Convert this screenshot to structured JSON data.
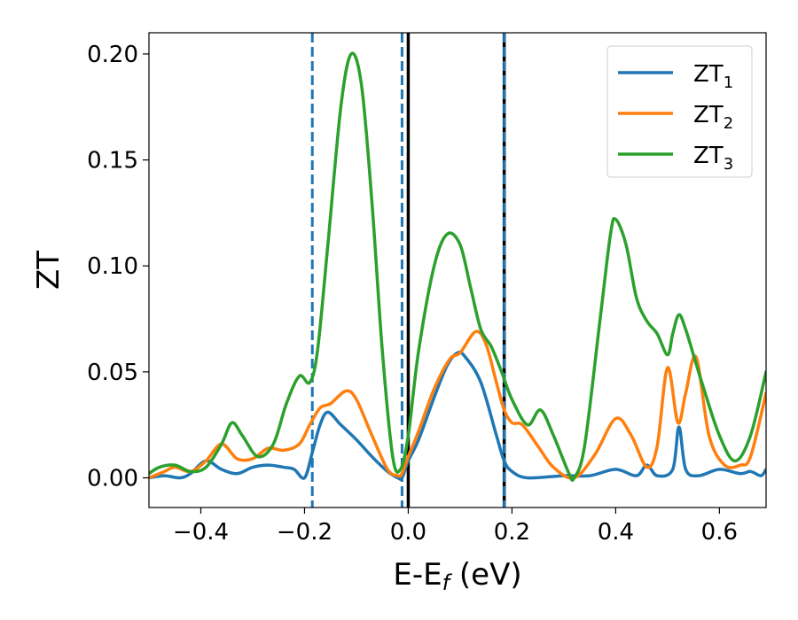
{
  "chart_data": {
    "type": "line",
    "xlabel_main": "E-E",
    "xlabel_sub": "f",
    "xlabel_unit": " (eV)",
    "ylabel": "ZT",
    "xlim": [
      -0.5,
      0.69
    ],
    "ylim": [
      -0.014,
      0.21
    ],
    "x_ticks": [
      -0.4,
      -0.2,
      0.0,
      0.2,
      0.4,
      0.6
    ],
    "x_tick_labels": [
      "−0.4",
      "−0.2",
      "0.0",
      "0.2",
      "0.4",
      "0.6"
    ],
    "y_ticks": [
      0.0,
      0.05,
      0.1,
      0.15,
      0.2
    ],
    "y_tick_labels": [
      "0.00",
      "0.05",
      "0.10",
      "0.15",
      "0.20"
    ],
    "grid": false,
    "legend_position": "top-right",
    "reference_lines": [
      {
        "x": -0.185,
        "style": "dashed",
        "color": "#1f77b4"
      },
      {
        "x": -0.012,
        "style": "dashed",
        "color": "#1f77b4"
      },
      {
        "x": 0.0,
        "style": "solid",
        "color": "#000000"
      },
      {
        "x": 0.185,
        "style": "solid",
        "color": "#000000"
      },
      {
        "x": 0.185,
        "style": "dashed",
        "color": "#1f77b4"
      }
    ],
    "series": [
      {
        "name": "ZT",
        "sub": "1",
        "color": "#1f77b4",
        "points": [
          [
            -0.5,
            0.0
          ],
          [
            -0.47,
            0.001
          ],
          [
            -0.44,
            0.0
          ],
          [
            -0.42,
            0.002
          ],
          [
            -0.39,
            0.008
          ],
          [
            -0.36,
            0.004
          ],
          [
            -0.33,
            0.002
          ],
          [
            -0.3,
            0.005
          ],
          [
            -0.27,
            0.006
          ],
          [
            -0.24,
            0.005
          ],
          [
            -0.22,
            0.004
          ],
          [
            -0.2,
            0.0
          ],
          [
            -0.185,
            0.012
          ],
          [
            -0.17,
            0.025
          ],
          [
            -0.155,
            0.031
          ],
          [
            -0.13,
            0.025
          ],
          [
            -0.1,
            0.018
          ],
          [
            -0.07,
            0.01
          ],
          [
            -0.04,
            0.003
          ],
          [
            -0.02,
            0.0
          ],
          [
            -0.012,
            0.0
          ],
          [
            0.0,
            0.008
          ],
          [
            0.02,
            0.018
          ],
          [
            0.05,
            0.038
          ],
          [
            0.075,
            0.053
          ],
          [
            0.095,
            0.059
          ],
          [
            0.11,
            0.057
          ],
          [
            0.14,
            0.045
          ],
          [
            0.17,
            0.02
          ],
          [
            0.185,
            0.008
          ],
          [
            0.2,
            0.003
          ],
          [
            0.23,
            0.0
          ],
          [
            0.3,
            0.001
          ],
          [
            0.35,
            0.001
          ],
          [
            0.4,
            0.004
          ],
          [
            0.44,
            0.001
          ],
          [
            0.46,
            0.006
          ],
          [
            0.48,
            0.001
          ],
          [
            0.51,
            0.004
          ],
          [
            0.522,
            0.024
          ],
          [
            0.535,
            0.004
          ],
          [
            0.56,
            0.001
          ],
          [
            0.6,
            0.004
          ],
          [
            0.64,
            0.002
          ],
          [
            0.66,
            0.003
          ],
          [
            0.68,
            0.001
          ],
          [
            0.69,
            0.004
          ]
        ]
      },
      {
        "name": "ZT",
        "sub": "2",
        "color": "#ff7f0e",
        "points": [
          [
            -0.5,
            0.0
          ],
          [
            -0.47,
            0.003
          ],
          [
            -0.45,
            0.005
          ],
          [
            -0.42,
            0.003
          ],
          [
            -0.39,
            0.008
          ],
          [
            -0.36,
            0.016
          ],
          [
            -0.33,
            0.009
          ],
          [
            -0.3,
            0.009
          ],
          [
            -0.27,
            0.014
          ],
          [
            -0.24,
            0.013
          ],
          [
            -0.21,
            0.016
          ],
          [
            -0.19,
            0.025
          ],
          [
            -0.17,
            0.033
          ],
          [
            -0.15,
            0.035
          ],
          [
            -0.12,
            0.041
          ],
          [
            -0.1,
            0.037
          ],
          [
            -0.07,
            0.02
          ],
          [
            -0.04,
            0.004
          ],
          [
            -0.02,
            0.001
          ],
          [
            -0.012,
            0.002
          ],
          [
            0.0,
            0.01
          ],
          [
            0.02,
            0.022
          ],
          [
            0.05,
            0.042
          ],
          [
            0.08,
            0.056
          ],
          [
            0.1,
            0.059
          ],
          [
            0.13,
            0.069
          ],
          [
            0.15,
            0.063
          ],
          [
            0.17,
            0.045
          ],
          [
            0.185,
            0.032
          ],
          [
            0.2,
            0.026
          ],
          [
            0.22,
            0.025
          ],
          [
            0.25,
            0.015
          ],
          [
            0.28,
            0.005
          ],
          [
            0.32,
            0.0
          ],
          [
            0.36,
            0.011
          ],
          [
            0.4,
            0.028
          ],
          [
            0.43,
            0.02
          ],
          [
            0.46,
            0.005
          ],
          [
            0.48,
            0.015
          ],
          [
            0.5,
            0.052
          ],
          [
            0.52,
            0.026
          ],
          [
            0.535,
            0.04
          ],
          [
            0.555,
            0.057
          ],
          [
            0.58,
            0.02
          ],
          [
            0.61,
            0.006
          ],
          [
            0.64,
            0.006
          ],
          [
            0.66,
            0.01
          ],
          [
            0.69,
            0.04
          ]
        ]
      },
      {
        "name": "ZT",
        "sub": "3",
        "color": "#2ca02c",
        "points": [
          [
            -0.5,
            0.002
          ],
          [
            -0.48,
            0.005
          ],
          [
            -0.45,
            0.006
          ],
          [
            -0.42,
            0.003
          ],
          [
            -0.39,
            0.005
          ],
          [
            -0.36,
            0.016
          ],
          [
            -0.34,
            0.026
          ],
          [
            -0.32,
            0.02
          ],
          [
            -0.29,
            0.01
          ],
          [
            -0.26,
            0.016
          ],
          [
            -0.235,
            0.035
          ],
          [
            -0.21,
            0.048
          ],
          [
            -0.19,
            0.045
          ],
          [
            -0.175,
            0.06
          ],
          [
            -0.155,
            0.11
          ],
          [
            -0.13,
            0.175
          ],
          [
            -0.11,
            0.2
          ],
          [
            -0.09,
            0.185
          ],
          [
            -0.07,
            0.13
          ],
          [
            -0.05,
            0.06
          ],
          [
            -0.03,
            0.01
          ],
          [
            -0.015,
            0.004
          ],
          [
            0.0,
            0.02
          ],
          [
            0.02,
            0.06
          ],
          [
            0.05,
            0.1
          ],
          [
            0.075,
            0.115
          ],
          [
            0.1,
            0.11
          ],
          [
            0.12,
            0.09
          ],
          [
            0.14,
            0.07
          ],
          [
            0.16,
            0.062
          ],
          [
            0.18,
            0.05
          ],
          [
            0.2,
            0.037
          ],
          [
            0.23,
            0.025
          ],
          [
            0.255,
            0.032
          ],
          [
            0.28,
            0.02
          ],
          [
            0.31,
            0.002
          ],
          [
            0.32,
            0.0
          ],
          [
            0.34,
            0.015
          ],
          [
            0.37,
            0.075
          ],
          [
            0.39,
            0.115
          ],
          [
            0.4,
            0.122
          ],
          [
            0.42,
            0.11
          ],
          [
            0.44,
            0.085
          ],
          [
            0.46,
            0.074
          ],
          [
            0.48,
            0.068
          ],
          [
            0.5,
            0.058
          ],
          [
            0.51,
            0.068
          ],
          [
            0.522,
            0.077
          ],
          [
            0.535,
            0.07
          ],
          [
            0.55,
            0.058
          ],
          [
            0.57,
            0.042
          ],
          [
            0.6,
            0.02
          ],
          [
            0.63,
            0.008
          ],
          [
            0.66,
            0.02
          ],
          [
            0.69,
            0.05
          ]
        ]
      }
    ]
  }
}
